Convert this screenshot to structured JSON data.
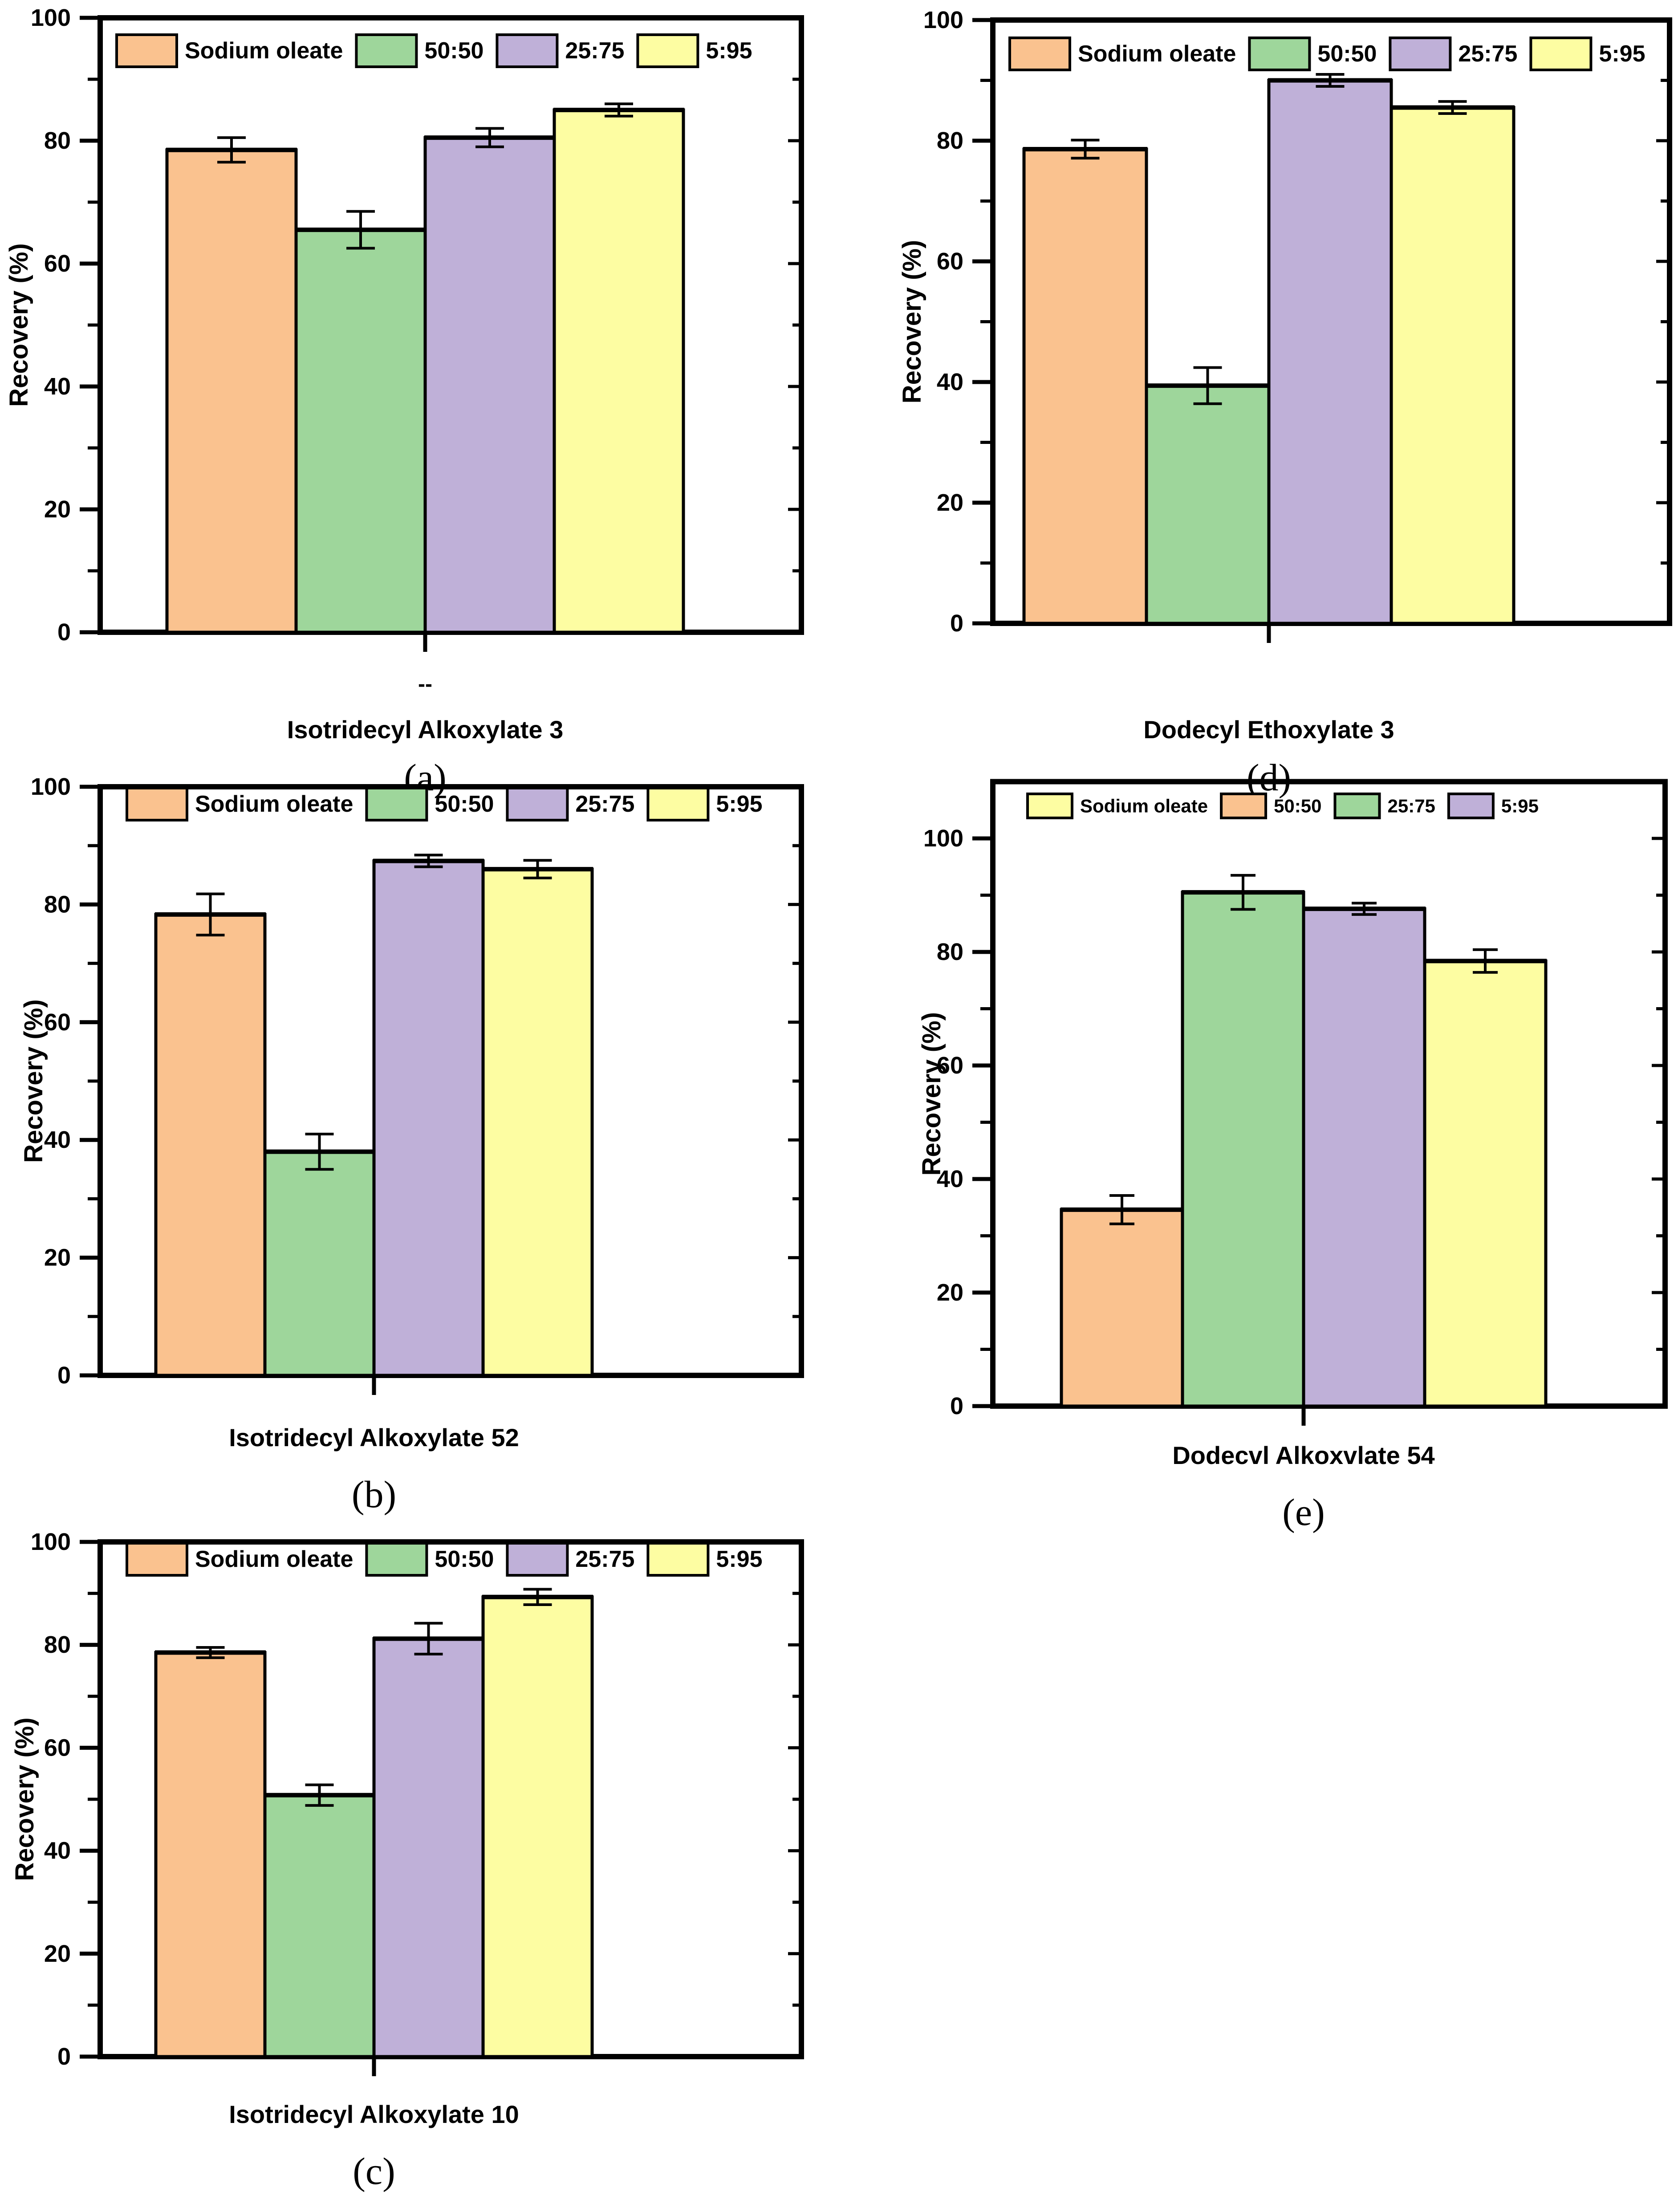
{
  "figure": {
    "background": "#ffffff",
    "axis_color": "#000000",
    "ylabel": "Recovery (%)"
  },
  "chart_data": [
    {
      "id": "a",
      "type": "bar",
      "title": "Isotridecyl Alkoxylate 3",
      "panel_label": "(a)",
      "ylabel": "Recovery (%)",
      "x_tick_label": "--",
      "ylim": [
        0,
        100
      ],
      "yticks": [
        0,
        20,
        40,
        60,
        80,
        100
      ],
      "minor_ticks": [
        10,
        30,
        50,
        70,
        90
      ],
      "grid": false,
      "legend_position": "top-inside",
      "legend": [
        {
          "label": "Sodium oleate",
          "color": "#FAC28F"
        },
        {
          "label": "50:50",
          "color": "#9ED69B"
        },
        {
          "label": "25:75",
          "color": "#BFB0D8"
        },
        {
          "label": "5:95",
          "color": "#FDFDA2"
        }
      ],
      "bars": [
        {
          "label": "Sodium oleate",
          "color": "#FAC28F",
          "value": 78.5,
          "error": 2
        },
        {
          "label": "50:50",
          "color": "#9ED69B",
          "value": 65.5,
          "error": 3
        },
        {
          "label": "25:75",
          "color": "#BFB0D8",
          "value": 80.5,
          "error": 1.5
        },
        {
          "label": "5:95",
          "color": "#FDFDA2",
          "value": 85,
          "error": 1
        }
      ]
    },
    {
      "id": "b",
      "type": "bar",
      "title": "Isotridecyl Alkoxylate 52",
      "panel_label": "(b)",
      "ylabel": "Recovery (%)",
      "x_tick_label": "",
      "ylim": [
        0,
        100
      ],
      "yticks": [
        0,
        20,
        40,
        60,
        80,
        100
      ],
      "minor_ticks": [
        10,
        30,
        50,
        70,
        90
      ],
      "grid": false,
      "legend_position": "top-inside",
      "legend": [
        {
          "label": "Sodium oleate",
          "color": "#FAC28F"
        },
        {
          "label": "50:50",
          "color": "#9ED69B"
        },
        {
          "label": "25:75",
          "color": "#BFB0D8"
        },
        {
          "label": "5:95",
          "color": "#FDFDA2"
        }
      ],
      "bars": [
        {
          "label": "Sodium oleate",
          "color": "#FAC28F",
          "value": 78.3,
          "error": 3.5
        },
        {
          "label": "50:50",
          "color": "#9ED69B",
          "value": 38,
          "error": 3
        },
        {
          "label": "25:75",
          "color": "#BFB0D8",
          "value": 87.4,
          "error": 1
        },
        {
          "label": "5:95",
          "color": "#FDFDA2",
          "value": 86,
          "error": 1.5
        }
      ]
    },
    {
      "id": "c",
      "type": "bar",
      "title": "Isotridecyl Alkoxylate 10",
      "panel_label": "(c)",
      "ylabel": "Recovery (%)",
      "x_tick_label": "",
      "ylim": [
        0,
        100
      ],
      "yticks": [
        0,
        20,
        40,
        60,
        80,
        100
      ],
      "minor_ticks": [
        10,
        30,
        50,
        70,
        90
      ],
      "grid": false,
      "legend_position": "top-inside",
      "legend": [
        {
          "label": "Sodium oleate",
          "color": "#FAC28F"
        },
        {
          "label": "50:50",
          "color": "#9ED69B"
        },
        {
          "label": "25:75",
          "color": "#BFB0D8"
        },
        {
          "label": "5:95",
          "color": "#FDFDA2"
        }
      ],
      "bars": [
        {
          "label": "Sodium oleate",
          "color": "#FAC28F",
          "value": 78.5,
          "error": 1
        },
        {
          "label": "50:50",
          "color": "#9ED69B",
          "value": 50.8,
          "error": 2
        },
        {
          "label": "25:75",
          "color": "#BFB0D8",
          "value": 81.2,
          "error": 3
        },
        {
          "label": "5:95",
          "color": "#FDFDA2",
          "value": 89.3,
          "error": 1.5
        }
      ]
    },
    {
      "id": "d",
      "type": "bar",
      "title": "Dodecyl Ethoxylate 3",
      "panel_label": "(d)",
      "ylabel": "Recovery (%)",
      "x_tick_label": "",
      "ylim": [
        0,
        100
      ],
      "yticks": [
        0,
        20,
        40,
        60,
        80,
        100
      ],
      "minor_ticks": [
        10,
        30,
        50,
        70,
        90
      ],
      "grid": false,
      "legend_position": "top-inside",
      "legend": [
        {
          "label": "Sodium oleate",
          "color": "#FAC28F"
        },
        {
          "label": "50:50",
          "color": "#9ED69B"
        },
        {
          "label": "25:75",
          "color": "#BFB0D8"
        },
        {
          "label": "5:95",
          "color": "#FDFDA2"
        }
      ],
      "bars": [
        {
          "label": "Sodium oleate",
          "color": "#FAC28F",
          "value": 78.6,
          "error": 1.5
        },
        {
          "label": "50:50",
          "color": "#9ED69B",
          "value": 39.4,
          "error": 3
        },
        {
          "label": "25:75",
          "color": "#BFB0D8",
          "value": 90,
          "error": 1
        },
        {
          "label": "5:95",
          "color": "#FDFDA2",
          "value": 85.5,
          "error": 1
        }
      ]
    },
    {
      "id": "e",
      "type": "bar",
      "title": "Dodecvl Alkoxvlate 54",
      "panel_label": "(e)",
      "ylabel": "Recovery (%)",
      "x_tick_label": "",
      "ylim": [
        0,
        110
      ],
      "yticks": [
        0,
        20,
        40,
        60,
        80,
        100
      ],
      "minor_ticks": [
        10,
        30,
        50,
        70,
        90
      ],
      "grid": false,
      "legend_position": "top-inside",
      "legend": [
        {
          "label": "Sodium oleate",
          "color": "#FDFDA2"
        },
        {
          "label": "50:50",
          "color": "#FAC28F"
        },
        {
          "label": "25:75",
          "color": "#9ED69B"
        },
        {
          "label": "5:95",
          "color": "#BFB0D8"
        }
      ],
      "bars": [
        {
          "label": "50:50",
          "color": "#FAC28F",
          "value": 34.6,
          "error": 2.5
        },
        {
          "label": "25:75",
          "color": "#9ED69B",
          "value": 90.5,
          "error": 3
        },
        {
          "label": "5:95",
          "color": "#BFB0D8",
          "value": 87.6,
          "error": 1
        },
        {
          "label": "Sodium oleate",
          "color": "#FDFDA2",
          "value": 78.4,
          "error": 2
        }
      ]
    }
  ]
}
